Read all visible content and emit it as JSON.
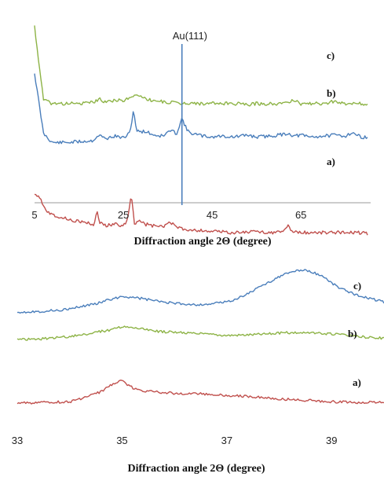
{
  "chart_data": [
    {
      "type": "line",
      "title": "",
      "xlabel": "Diffraction  angle 2Θ (degree)",
      "ylabel": "",
      "xlim": [
        5,
        80
      ],
      "x_ticks": [
        "5",
        "25",
        "45",
        "65"
      ],
      "x_tick_values": [
        5,
        25,
        45,
        65
      ],
      "grid": false,
      "legend": "labels at right end of each curve",
      "annotation": {
        "text": "Au(111)",
        "x": 38.2
      },
      "series": [
        {
          "name": "c)",
          "color": "#4a7ebb",
          "label": "c)",
          "x": [
            5,
            7,
            9,
            12,
            15,
            18,
            19.5,
            21,
            23,
            25,
            26.5,
            27.3,
            28,
            30,
            32,
            34,
            35.5,
            37,
            38.2,
            39.5,
            41,
            43,
            45,
            47,
            50,
            53,
            55,
            58,
            60,
            62,
            63.5,
            65,
            67,
            70,
            73,
            75,
            76.5,
            78,
            80
          ],
          "y": [
            0.95,
            0.3,
            0.2,
            0.2,
            0.21,
            0.22,
            0.28,
            0.24,
            0.27,
            0.25,
            0.3,
            0.56,
            0.32,
            0.32,
            0.28,
            0.27,
            0.33,
            0.3,
            0.46,
            0.32,
            0.29,
            0.27,
            0.26,
            0.27,
            0.26,
            0.28,
            0.26,
            0.27,
            0.28,
            0.3,
            0.27,
            0.28,
            0.26,
            0.27,
            0.28,
            0.27,
            0.31,
            0.27,
            0.25
          ]
        },
        {
          "name": "b)",
          "color": "#8db346",
          "label": "b)",
          "x": [
            5,
            7,
            9,
            12,
            15,
            18,
            19.5,
            21,
            23,
            25,
            26,
            27,
            28.5,
            30,
            32,
            34,
            36,
            38,
            40,
            42,
            45,
            48,
            50,
            53,
            55,
            58,
            60,
            62,
            63.5,
            65,
            68,
            70,
            72,
            75,
            78,
            80
          ],
          "y": [
            0.95,
            0.16,
            0.12,
            0.12,
            0.12,
            0.13,
            0.17,
            0.14,
            0.16,
            0.15,
            0.17,
            0.19,
            0.22,
            0.17,
            0.15,
            0.14,
            0.13,
            0.12,
            0.13,
            0.12,
            0.12,
            0.12,
            0.12,
            0.11,
            0.12,
            0.12,
            0.12,
            0.13,
            0.16,
            0.12,
            0.12,
            0.12,
            0.14,
            0.12,
            0.12,
            0.12
          ]
        },
        {
          "name": "a)",
          "color": "#c0504d",
          "label": "a)",
          "x": [
            5,
            6,
            7,
            8,
            10,
            12,
            15,
            17,
            18.5,
            19,
            19.5,
            20,
            21,
            23,
            25,
            26,
            26.8,
            27.5,
            28.5,
            30,
            32,
            34,
            35.5,
            36.5,
            38,
            40,
            43,
            46,
            50,
            55,
            58,
            60,
            61,
            62,
            63,
            65,
            68,
            70,
            73,
            75,
            78,
            80
          ],
          "y": [
            -0.08,
            -0.1,
            -0.2,
            -0.28,
            -0.32,
            -0.35,
            -0.38,
            -0.4,
            -0.42,
            -0.24,
            -0.38,
            -0.4,
            -0.42,
            -0.41,
            -0.43,
            -0.35,
            -0.08,
            -0.4,
            -0.37,
            -0.41,
            -0.43,
            -0.44,
            -0.38,
            -0.43,
            -0.46,
            -0.47,
            -0.48,
            -0.49,
            -0.5,
            -0.49,
            -0.5,
            -0.5,
            -0.49,
            -0.42,
            -0.49,
            -0.5,
            -0.5,
            -0.5,
            -0.5,
            -0.49,
            -0.5,
            -0.51
          ]
        }
      ]
    },
    {
      "type": "line",
      "title": "",
      "xlabel": "Diffraction  angle 2Θ (degree)",
      "ylabel": "",
      "xlim": [
        33,
        40
      ],
      "x_ticks": [
        "33",
        "35",
        "37",
        "39"
      ],
      "x_tick_values": [
        33,
        35,
        37,
        39
      ],
      "grid": false,
      "legend": "labels at right end of each curve",
      "series": [
        {
          "name": "c)",
          "color": "#4a7ebb",
          "label": "c)",
          "x": [
            33,
            33.5,
            34,
            34.5,
            34.8,
            35,
            35.3,
            35.6,
            36,
            36.5,
            37,
            37.3,
            37.6,
            38,
            38.3,
            38.5,
            38.8,
            39.1,
            39.4,
            39.7,
            40
          ],
          "y": [
            0.0,
            0.01,
            0.04,
            0.12,
            0.18,
            0.22,
            0.2,
            0.16,
            0.12,
            0.1,
            0.14,
            0.22,
            0.34,
            0.5,
            0.58,
            0.59,
            0.52,
            0.36,
            0.26,
            0.2,
            0.14
          ]
        },
        {
          "name": "b)",
          "color": "#8db346",
          "label": "b)",
          "x": [
            33,
            33.5,
            34,
            34.5,
            34.8,
            35,
            35.3,
            35.6,
            36,
            36.5,
            37,
            37.5,
            38,
            38.3,
            38.6,
            39,
            39.4,
            39.7,
            40
          ],
          "y": [
            0.0,
            0.01,
            0.04,
            0.1,
            0.14,
            0.18,
            0.16,
            0.12,
            0.1,
            0.08,
            0.06,
            0.07,
            0.09,
            0.1,
            0.09,
            0.08,
            0.05,
            0.03,
            0.02
          ]
        },
        {
          "name": "a)",
          "color": "#c0504d",
          "label": "a)",
          "x": [
            33,
            33.5,
            34,
            34.3,
            34.6,
            34.8,
            35,
            35.1,
            35.3,
            35.6,
            36,
            36.5,
            37,
            37.5,
            38,
            38.5,
            39,
            39.5,
            40
          ],
          "y": [
            0.0,
            0.01,
            0.02,
            0.08,
            0.16,
            0.26,
            0.34,
            0.26,
            0.18,
            0.16,
            0.14,
            0.13,
            0.11,
            0.09,
            0.06,
            0.04,
            0.02,
            0.01,
            0.01
          ]
        }
      ]
    }
  ]
}
